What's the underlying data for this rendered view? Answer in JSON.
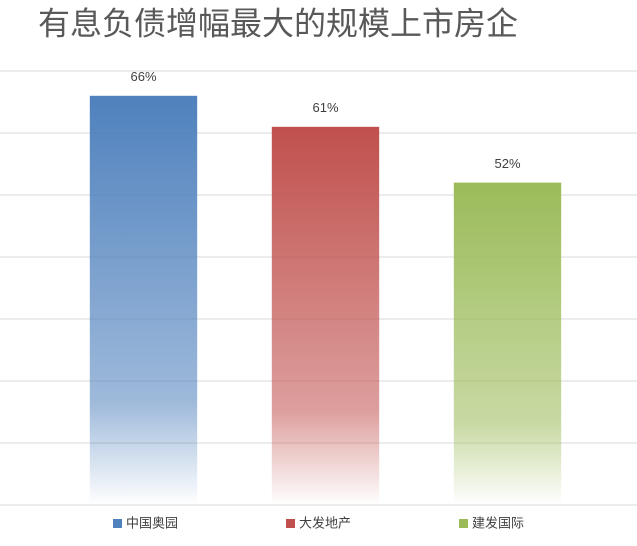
{
  "chart_data": {
    "type": "bar",
    "title": "有息负债增幅最大的规模上市房企",
    "categories": [
      "中国奥园",
      "大发地产",
      "建发国际"
    ],
    "values": [
      66,
      61,
      52
    ],
    "value_labels": [
      "66%",
      "61%",
      "52%"
    ],
    "colors": [
      "#4f81bd",
      "#c0504d",
      "#9bbb59"
    ],
    "ylim": [
      0,
      70
    ],
    "yticks": [
      0,
      10,
      20,
      30,
      40,
      50,
      60,
      70
    ],
    "grid": true
  }
}
